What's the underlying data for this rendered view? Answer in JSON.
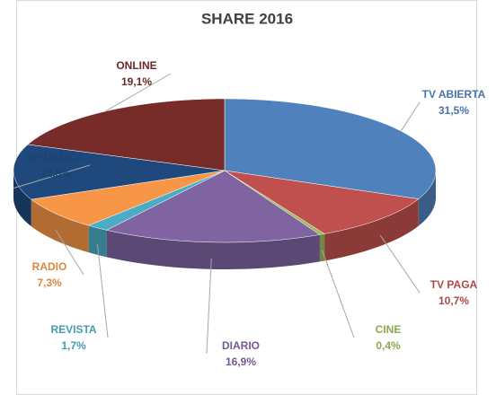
{
  "chart_data": {
    "type": "pie",
    "title": "SHARE 2016",
    "categories": [
      "TV ABIERTA",
      "TV PAGA",
      "CINE",
      "DIARIO",
      "REVISTA",
      "RADIO",
      "V.PÚBLICA",
      "ONLINE"
    ],
    "values": [
      31.5,
      10.7,
      0.4,
      16.9,
      1.7,
      7.3,
      12.5,
      19.1
    ],
    "value_labels": [
      "31,5%",
      "10,7%",
      "0,4%",
      "16,9%",
      "1,7%",
      "7,3%",
      "12,5%",
      "19,1%"
    ],
    "colors": [
      "#4f81bd",
      "#c0504d",
      "#9bbb59",
      "#8064a2",
      "#4bacc6",
      "#f79646",
      "#1f497d",
      "#772c2a"
    ]
  }
}
